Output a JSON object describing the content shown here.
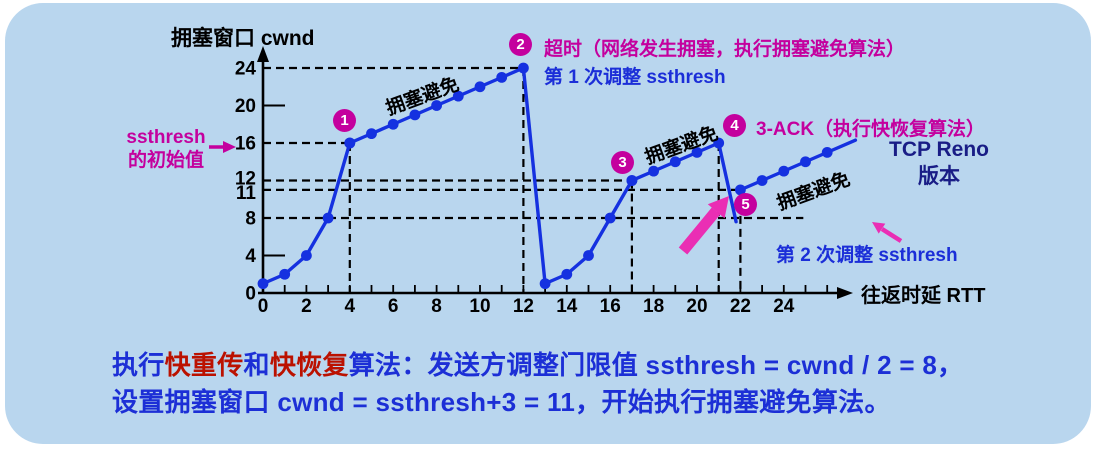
{
  "colors": {
    "panel_bg": "#b9d6ee",
    "curve_blue": "#1531e0",
    "magenta": "#c4009e",
    "pink_arrow": "#ea2eb4",
    "royal_blue": "#1b2ed8",
    "navy": "#191d86",
    "caption_blue": "#1c2fd6",
    "caption_red": "#bb1100",
    "black": "#000000"
  },
  "title": "拥塞窗口  cwnd",
  "x_axis_label": "往返时延 RTT",
  "markers": {
    "m1": "1",
    "m2": "2",
    "m3": "3",
    "m4": "4",
    "m5": "5"
  },
  "labels": {
    "ssthresh_line1": "ssthresh",
    "ssthresh_line2": "的初始值",
    "timeout_text": "超时（网络发生拥塞，执行拥塞避免算法）",
    "first_adjust": "第 1 次调整 ssthresh",
    "three_ack": "3-ACK（执行快恢复算法）",
    "tcp_reno_line1": "TCP Reno",
    "tcp_reno_line2": "版本",
    "second_adjust": "第 2 次调整 ssthresh",
    "ca1": "拥塞避免",
    "ca2": "拥塞避免",
    "ca3": "拥塞避免"
  },
  "caption": {
    "line1": [
      {
        "text": "执行",
        "color": "blue"
      },
      {
        "text": "快重传",
        "color": "red"
      },
      {
        "text": "和",
        "color": "blue"
      },
      {
        "text": "快恢复",
        "color": "red"
      },
      {
        "text": "算法：发送方调整门限值 ssthresh = cwnd / 2 = 8，",
        "color": "blue"
      }
    ],
    "line2": [
      {
        "text": "设置拥塞窗口 cwnd = ssthresh+3 = 11，开始执行拥塞避免算法。",
        "color": "blue"
      }
    ]
  },
  "chart_data": {
    "type": "line",
    "title": "拥塞窗口 cwnd",
    "xlabel": "往返时延 RTT",
    "ylabel": "拥塞窗口 cwnd",
    "xlim": [
      0,
      26
    ],
    "ylim": [
      0,
      24
    ],
    "x_labeled_ticks": [
      0,
      2,
      4,
      6,
      8,
      10,
      12,
      14,
      16,
      18,
      20,
      22,
      24
    ],
    "x_minor_tick_max": 26,
    "y_labeled_values": [
      24,
      20,
      16,
      12,
      11,
      8,
      4,
      0
    ],
    "y_plain_tick_values": [
      20,
      4
    ],
    "ssthresh_initial": 16,
    "ssthresh_after_first_adjust": 12,
    "ssthresh_after_second_adjust": 8,
    "cwnd_after_fast_recovery": 11,
    "segments": [
      {
        "name": "slow-start-1",
        "points": [
          [
            0,
            1
          ],
          [
            1,
            2
          ],
          [
            2,
            4
          ],
          [
            3,
            8
          ],
          [
            4,
            16
          ]
        ],
        "dots": true
      },
      {
        "name": "congestion-avoidance-1",
        "points": [
          [
            4,
            16
          ],
          [
            5,
            17
          ],
          [
            6,
            18
          ],
          [
            7,
            19
          ],
          [
            8,
            20
          ],
          [
            9,
            21
          ],
          [
            10,
            22
          ],
          [
            11,
            23
          ],
          [
            12,
            24
          ]
        ],
        "dots": true
      },
      {
        "name": "timeout-drop",
        "points": [
          [
            12,
            24
          ],
          [
            13,
            1
          ]
        ],
        "dots": false
      },
      {
        "name": "slow-start-2",
        "points": [
          [
            13,
            1
          ],
          [
            14,
            2
          ],
          [
            15,
            4
          ],
          [
            16,
            8
          ],
          [
            17,
            12
          ]
        ],
        "dots": true
      },
      {
        "name": "congestion-avoidance-2",
        "points": [
          [
            17,
            12
          ],
          [
            18,
            13
          ],
          [
            19,
            14
          ],
          [
            20,
            15
          ],
          [
            21,
            16
          ]
        ],
        "dots": true
      },
      {
        "name": "fast-recovery-drop",
        "points": [
          [
            21,
            16
          ],
          [
            21.8,
            7.6
          ]
        ],
        "dots": false
      },
      {
        "name": "congestion-avoidance-3",
        "points": [
          [
            22,
            11
          ],
          [
            23,
            12
          ],
          [
            24,
            13
          ],
          [
            25,
            14
          ],
          [
            26,
            15
          ],
          [
            27.3,
            16.3
          ]
        ],
        "dots": true,
        "dot_points": [
          [
            22,
            11
          ],
          [
            23,
            12
          ],
          [
            24,
            13
          ],
          [
            25,
            14
          ],
          [
            26,
            15
          ]
        ]
      }
    ],
    "dashed_h_guides": [
      {
        "y": 24,
        "x1": 0,
        "x2": 12
      },
      {
        "y": 16,
        "x1": 0,
        "x2": 4
      },
      {
        "y": 12,
        "x1": 0,
        "x2": 17
      },
      {
        "y": 11,
        "x1": 0,
        "x2": 22
      },
      {
        "y": 8,
        "x1": 0,
        "x2": 24.9
      }
    ],
    "dashed_v_guides": [
      {
        "x": 4,
        "y1": 0,
        "y2": 16
      },
      {
        "x": 12,
        "y1": 0,
        "y2": 24
      },
      {
        "x": 17,
        "y1": 0,
        "y2": 12
      },
      {
        "x": 21,
        "y1": 0,
        "y2": 16
      },
      {
        "x": 22,
        "y1": 0,
        "y2": 11
      }
    ]
  }
}
